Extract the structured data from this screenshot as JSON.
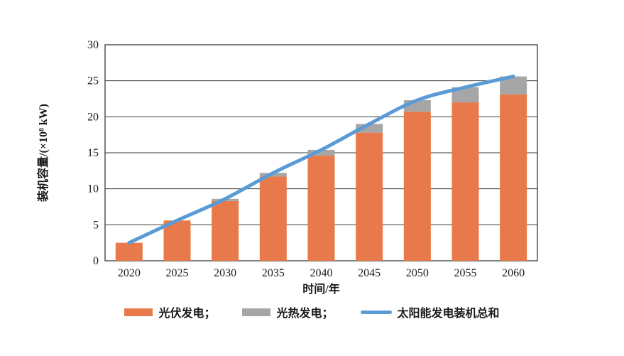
{
  "chart_data": {
    "type": "bar",
    "subtype": "stacked-bars-with-line-overlay",
    "title": "",
    "categories": [
      "2020",
      "2025",
      "2030",
      "2035",
      "2040",
      "2045",
      "2050",
      "2055",
      "2060"
    ],
    "series": [
      {
        "name": "光伏发电",
        "type": "bar",
        "color": "#E8794A",
        "values": [
          2.5,
          5.6,
          8.3,
          11.7,
          14.6,
          17.8,
          20.7,
          22.0,
          23.1
        ]
      },
      {
        "name": "光热发电",
        "type": "bar",
        "color": "#A6A6A6",
        "values": [
          0,
          0,
          0.3,
          0.5,
          0.8,
          1.2,
          1.6,
          2.1,
          2.5
        ]
      },
      {
        "name": "太阳能发电装机总和",
        "type": "line",
        "color": "#5B9BD5",
        "values": [
          2.5,
          5.6,
          8.6,
          12.2,
          15.4,
          19.0,
          22.3,
          24.1,
          25.6
        ]
      }
    ],
    "xlabel": "时间/年",
    "ylabel": "装机容量/(×10⁸ kW)",
    "ylim": [
      0,
      30
    ],
    "yticks": [
      0,
      5,
      10,
      15,
      20,
      25,
      30
    ],
    "grid": "horizontal",
    "plot_border": true,
    "legend_position": "bottom"
  },
  "legend": {
    "items": [
      {
        "label": "光伏发电；",
        "swatch": "bar",
        "color": "#E8794A"
      },
      {
        "label": "光热发电；",
        "swatch": "bar",
        "color": "#A6A6A6"
      },
      {
        "label": "太阳能发电装机总和",
        "swatch": "line",
        "color": "#5B9BD5"
      }
    ]
  },
  "colors": {
    "grid_line": "#3a3a3a",
    "axis_text": "#1a1a1a",
    "background": "#ffffff"
  }
}
